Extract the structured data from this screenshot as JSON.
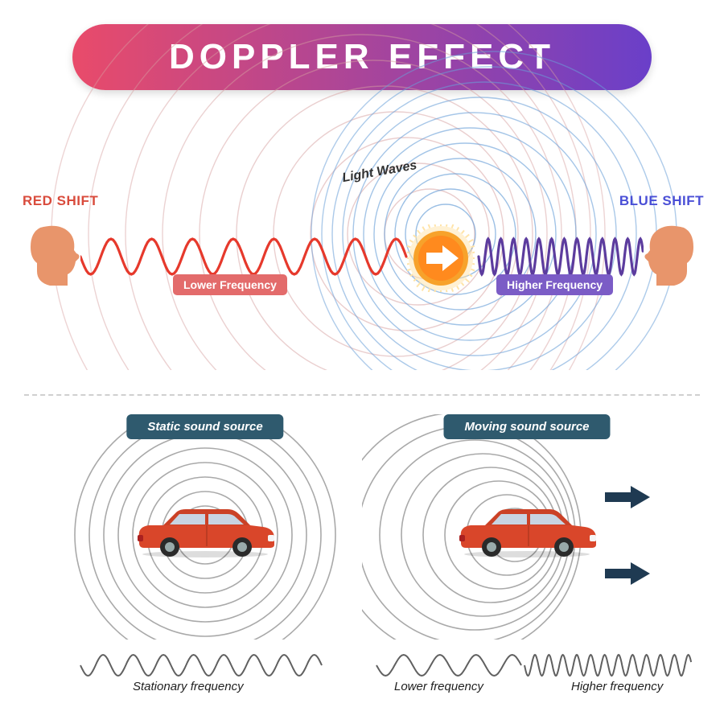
{
  "title": "DOPPLER EFFECT",
  "title_gradient": {
    "from": "#e94b6a",
    "to": "#6a3fc9"
  },
  "upper": {
    "red_shift_label": "RED SHIFT",
    "red_shift_color": "#d94b3c",
    "blue_shift_label": "BLUE SHIFT",
    "blue_shift_color": "#4a4fd6",
    "light_waves_label": "Light Waves",
    "lower_freq_label": "Lower Frequency",
    "lower_freq_bg": "#e36b6b",
    "higher_freq_label": "Higher Frequency",
    "higher_freq_bg": "#7b5cc6",
    "head_color": "#e8956b",
    "red_wave_color": "#e6392c",
    "purple_wave_color": "#5c3c9e",
    "circle_red_color": "#d6a0a0",
    "circle_blue_color": "#6aa0d8",
    "circle_gray_color": "#b8b8b8",
    "sun_outer": "#f7a22b",
    "sun_inner": "#ff8a1e",
    "sun_glow": "#ffe4a8",
    "red_circle_count": 10,
    "blue_circle_count": 11,
    "red_wave_periods": 8,
    "purple_wave_periods": 13
  },
  "lower": {
    "static_label": "Static sound source",
    "moving_label": "Moving sound source",
    "panel_label_bg": "#2f5a6e",
    "circle_color": "#9a9a9a",
    "car_body_color": "#d9462a",
    "car_accent_color": "#b33820",
    "car_window_color": "#c8d4e2",
    "arrow_color": "#1f3a52",
    "static_circle_count": 8,
    "moving_circle_count": 8,
    "stationary_caption": "Stationary frequency",
    "lower_caption": "Lower frequency",
    "higher_caption": "Higher frequency",
    "wave_color": "#606060"
  }
}
